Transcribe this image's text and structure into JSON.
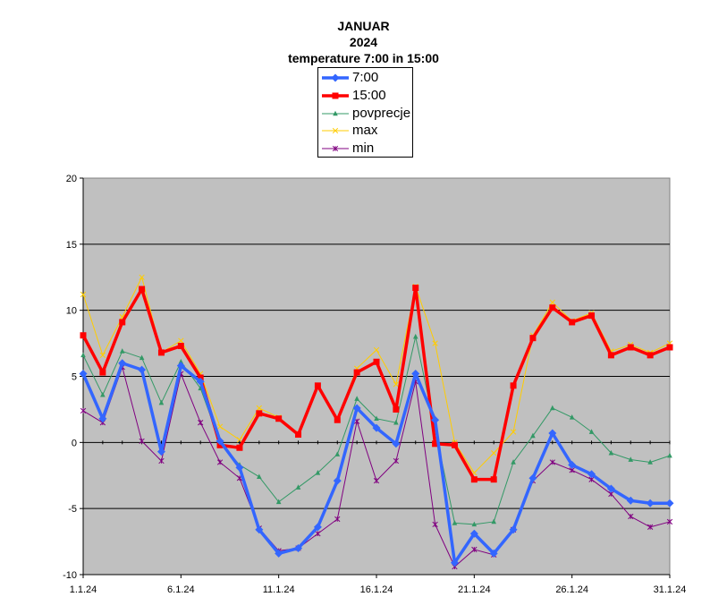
{
  "chart_data": {
    "type": "line",
    "title": [
      "JANUAR",
      "2024",
      "temperature 7:00 in 15:00"
    ],
    "ylim": [
      -10,
      20
    ],
    "yticks": [
      -10,
      -5,
      0,
      5,
      10,
      15,
      20
    ],
    "x": [
      1,
      2,
      3,
      4,
      5,
      6,
      7,
      8,
      9,
      10,
      11,
      12,
      13,
      14,
      15,
      16,
      17,
      18,
      19,
      20,
      21,
      22,
      23,
      24,
      25,
      26,
      27,
      28,
      29,
      30,
      31
    ],
    "xtick_labels": [
      {
        "day": 1,
        "label": "1.1.24"
      },
      {
        "day": 6,
        "label": "6.1.24"
      },
      {
        "day": 11,
        "label": "11.1.24"
      },
      {
        "day": 16,
        "label": "16.1.24"
      },
      {
        "day": 21,
        "label": "21.1.24"
      },
      {
        "day": 26,
        "label": "26.1.24"
      },
      {
        "day": 31,
        "label": "31.1.24"
      }
    ],
    "grid": "horizontal",
    "legend_position": "top-center",
    "series": [
      {
        "name": "7:00",
        "color": "#3366ff",
        "marker": "diamond",
        "width": 3.5,
        "values": [
          5.2,
          1.8,
          6.0,
          5.5,
          -0.7,
          5.8,
          4.6,
          0.1,
          -1.9,
          -6.6,
          -8.4,
          -8.0,
          -6.4,
          -2.9,
          2.6,
          1.1,
          -0.1,
          5.2,
          1.7,
          -9.1,
          -6.9,
          -8.4,
          -6.6,
          -2.7,
          0.7,
          -1.7,
          -2.4,
          -3.5,
          -4.4,
          -4.6,
          -4.6
        ]
      },
      {
        "name": "15:00",
        "color": "#ff0000",
        "marker": "square",
        "width": 3.5,
        "values": [
          8.1,
          5.3,
          9.1,
          11.6,
          6.8,
          7.3,
          4.9,
          -0.2,
          -0.4,
          2.2,
          1.8,
          0.6,
          4.3,
          1.7,
          5.3,
          6.1,
          2.5,
          11.7,
          -0.1,
          -0.2,
          -2.8,
          -2.8,
          4.3,
          7.9,
          10.2,
          9.1,
          9.6,
          6.6,
          7.2,
          6.6,
          7.2
        ]
      },
      {
        "name": "povprecje",
        "color": "#339966",
        "marker": "triangle",
        "width": 1,
        "values": [
          6.6,
          3.6,
          6.9,
          6.4,
          3.0,
          6.1,
          4.1,
          0.0,
          -1.7,
          -2.6,
          -4.5,
          -3.4,
          -2.3,
          -0.9,
          3.3,
          1.8,
          1.5,
          8.0,
          1.0,
          -6.1,
          -6.2,
          -6.0,
          -1.5,
          0.5,
          2.6,
          1.9,
          0.8,
          -0.8,
          -1.3,
          -1.5,
          -1.0
        ]
      },
      {
        "name": "max",
        "color": "#ffcc00",
        "marker": "x",
        "width": 1,
        "values": [
          11.2,
          6.6,
          9.5,
          12.5,
          6.8,
          7.7,
          5.2,
          1.2,
          0.2,
          2.6,
          1.9,
          0.7,
          4.3,
          1.8,
          5.6,
          7.0,
          4.4,
          11.8,
          7.5,
          0.0,
          -2.3,
          -0.8,
          0.8,
          8.1,
          10.6,
          9.2,
          9.8,
          6.9,
          7.4,
          6.8,
          7.5
        ]
      },
      {
        "name": "min",
        "color": "#800080",
        "marker": "star",
        "width": 1,
        "values": [
          2.4,
          1.5,
          5.7,
          0.1,
          -1.4,
          5.2,
          1.5,
          -1.5,
          -2.7,
          -6.5,
          -8.2,
          -8.0,
          -6.9,
          -5.8,
          1.6,
          -2.9,
          -1.4,
          4.6,
          -6.2,
          -9.4,
          -8.1,
          -8.5,
          -6.6,
          -2.9,
          -1.5,
          -2.1,
          -2.8,
          -3.9,
          -5.6,
          -6.4,
          -6.0
        ]
      }
    ]
  }
}
